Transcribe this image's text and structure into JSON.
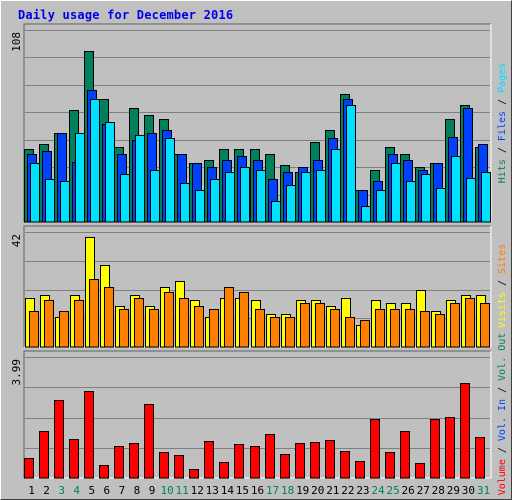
{
  "title": "Daily usage for December 2016",
  "colors": {
    "hits": "#00805c",
    "files": "#0040ff",
    "pages": "#00e0ff",
    "visits": "#ffff00",
    "sites": "#ff8000",
    "volume": "#ff0000",
    "weekend_label": "#00805c",
    "weekday_label": "#000000"
  },
  "legend_top": [
    {
      "text": "Hits",
      "color": "#00805c"
    },
    {
      "text": " / ",
      "color": "#000000"
    },
    {
      "text": "Files",
      "color": "#0040ff"
    },
    {
      "text": " / ",
      "color": "#000000"
    },
    {
      "text": "Pages",
      "color": "#00e0ff"
    }
  ],
  "legend_middle": [
    {
      "text": "Visits",
      "color": "#ffff00"
    },
    {
      "text": " / ",
      "color": "#000000"
    },
    {
      "text": "Sites",
      "color": "#ff8000"
    }
  ],
  "legend_bottom": [
    {
      "text": "Volume",
      "color": "#ff0000"
    },
    {
      "text": " / ",
      "color": "#000000"
    },
    {
      "text": "Vol. In",
      "color": "#0040ff"
    },
    {
      "text": " / ",
      "color": "#000000"
    },
    {
      "text": "Vol. Out",
      "color": "#00805c"
    }
  ],
  "chart_data": [
    {
      "type": "bar",
      "name": "top",
      "categories": [
        "1",
        "2",
        "3",
        "4",
        "5",
        "6",
        "7",
        "8",
        "9",
        "10",
        "11",
        "12",
        "13",
        "14",
        "15",
        "16",
        "17",
        "18",
        "19",
        "20",
        "21",
        "22",
        "23",
        "24",
        "25",
        "26",
        "27",
        "28",
        "29",
        "30",
        "31"
      ],
      "weekend_days": [
        "3",
        "4",
        "10",
        "11",
        "17",
        "18",
        "24",
        "25",
        "31"
      ],
      "ytick_label": "108",
      "ylim": [
        0,
        108
      ],
      "series": [
        {
          "name": "Hits",
          "values": [
            41,
            44,
            50,
            63,
            96,
            69,
            42,
            64,
            60,
            58,
            38,
            33,
            35,
            41,
            41,
            41,
            38,
            32,
            28,
            45,
            52,
            72,
            18,
            29,
            42,
            38,
            31,
            33,
            58,
            66,
            42
          ]
        },
        {
          "name": "Files",
          "values": [
            38,
            40,
            50,
            34,
            74,
            55,
            38,
            46,
            50,
            52,
            38,
            33,
            31,
            35,
            37,
            35,
            24,
            28,
            31,
            35,
            47,
            69,
            18,
            23,
            38,
            35,
            29,
            33,
            48,
            64,
            44
          ]
        },
        {
          "name": "Pages",
          "values": [
            33,
            24,
            23,
            50,
            69,
            56,
            27,
            49,
            29,
            47,
            22,
            18,
            24,
            28,
            31,
            29,
            12,
            21,
            28,
            29,
            41,
            66,
            9,
            18,
            33,
            23,
            27,
            19,
            37,
            25,
            28
          ]
        }
      ]
    },
    {
      "type": "bar",
      "name": "middle",
      "categories": [
        "1",
        "2",
        "3",
        "4",
        "5",
        "6",
        "7",
        "8",
        "9",
        "10",
        "11",
        "12",
        "13",
        "14",
        "15",
        "16",
        "17",
        "18",
        "19",
        "20",
        "21",
        "22",
        "23",
        "24",
        "25",
        "26",
        "27",
        "28",
        "29",
        "30",
        "31"
      ],
      "weekend_days": [
        "3",
        "4",
        "10",
        "11",
        "17",
        "18",
        "24",
        "25",
        "31"
      ],
      "ytick_label": "42",
      "ylim": [
        0,
        42
      ],
      "series": [
        {
          "name": "Visits",
          "values": [
            18,
            19,
            11,
            19,
            40,
            30,
            15,
            19,
            15,
            22,
            24,
            17,
            11,
            18,
            18,
            17,
            12,
            12,
            17,
            17,
            15,
            18,
            8,
            17,
            16,
            16,
            21,
            13,
            17,
            19,
            19
          ]
        },
        {
          "name": "Sites",
          "values": [
            13,
            17,
            13,
            17,
            25,
            22,
            14,
            18,
            14,
            20,
            18,
            15,
            14,
            22,
            20,
            14,
            11,
            11,
            16,
            16,
            14,
            11,
            10,
            14,
            14,
            14,
            13,
            12,
            16,
            18,
            16
          ]
        }
      ]
    },
    {
      "type": "bar",
      "name": "bottom",
      "categories": [
        "1",
        "2",
        "3",
        "4",
        "5",
        "6",
        "7",
        "8",
        "9",
        "10",
        "11",
        "12",
        "13",
        "14",
        "15",
        "16",
        "17",
        "18",
        "19",
        "20",
        "21",
        "22",
        "23",
        "24",
        "25",
        "26",
        "27",
        "28",
        "29",
        "30",
        "31"
      ],
      "weekend_days": [
        "3",
        "4",
        "10",
        "11",
        "17",
        "18",
        "24",
        "25",
        "31"
      ],
      "ytick_label": "3.99",
      "ylim": [
        0,
        3.99
      ],
      "series": [
        {
          "name": "Volume",
          "values": [
            0.65,
            1.54,
            2.57,
            1.27,
            2.87,
            0.43,
            1.05,
            1.16,
            2.45,
            0.86,
            0.77,
            0.31,
            1.22,
            0.54,
            1.13,
            1.04,
            1.46,
            0.8,
            1.17,
            1.2,
            1.24,
            0.9,
            0.55,
            1.94,
            0.86,
            1.54,
            0.5,
            1.94,
            2.0,
            3.14,
            1.34
          ]
        }
      ]
    }
  ]
}
